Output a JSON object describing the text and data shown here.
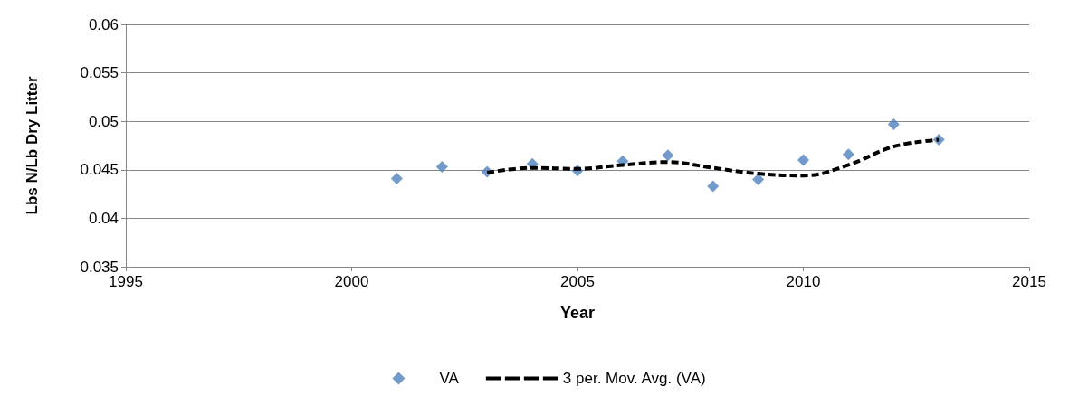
{
  "chart_data": {
    "type": "scatter",
    "xlabel": "Year",
    "ylabel": "Lbs N/Lb Dry Litter",
    "xlim": [
      1995,
      2015
    ],
    "xticks": [
      1995,
      2000,
      2005,
      2010,
      2015
    ],
    "ylim": [
      0.035,
      0.06
    ],
    "yticks": [
      0.035,
      0.04,
      0.045,
      0.05,
      0.055,
      0.06
    ],
    "grid": "y",
    "legend": "bottom",
    "series": [
      {
        "name": "VA",
        "marker": "diamond",
        "color": "#4f81bd",
        "x": [
          2001,
          2002,
          2003,
          2004,
          2005,
          2006,
          2007,
          2008,
          2009,
          2010,
          2011,
          2012,
          2013
        ],
        "values": [
          0.0441,
          0.0453,
          0.0448,
          0.0456,
          0.0449,
          0.0459,
          0.0465,
          0.0433,
          0.044,
          0.046,
          0.0466,
          0.0497,
          0.0481
        ]
      },
      {
        "name": "3 per. Mov. Avg. (VA)",
        "type": "line",
        "line_style": "dashed",
        "marker": "none",
        "color": "#000000",
        "x": [
          2003,
          2004,
          2005,
          2006,
          2007,
          2008,
          2009,
          2010,
          2011,
          2012,
          2013
        ],
        "values": [
          0.0447,
          0.0452,
          0.0451,
          0.0455,
          0.0458,
          0.0452,
          0.0446,
          0.0444,
          0.0455,
          0.0474,
          0.0481
        ]
      }
    ]
  }
}
